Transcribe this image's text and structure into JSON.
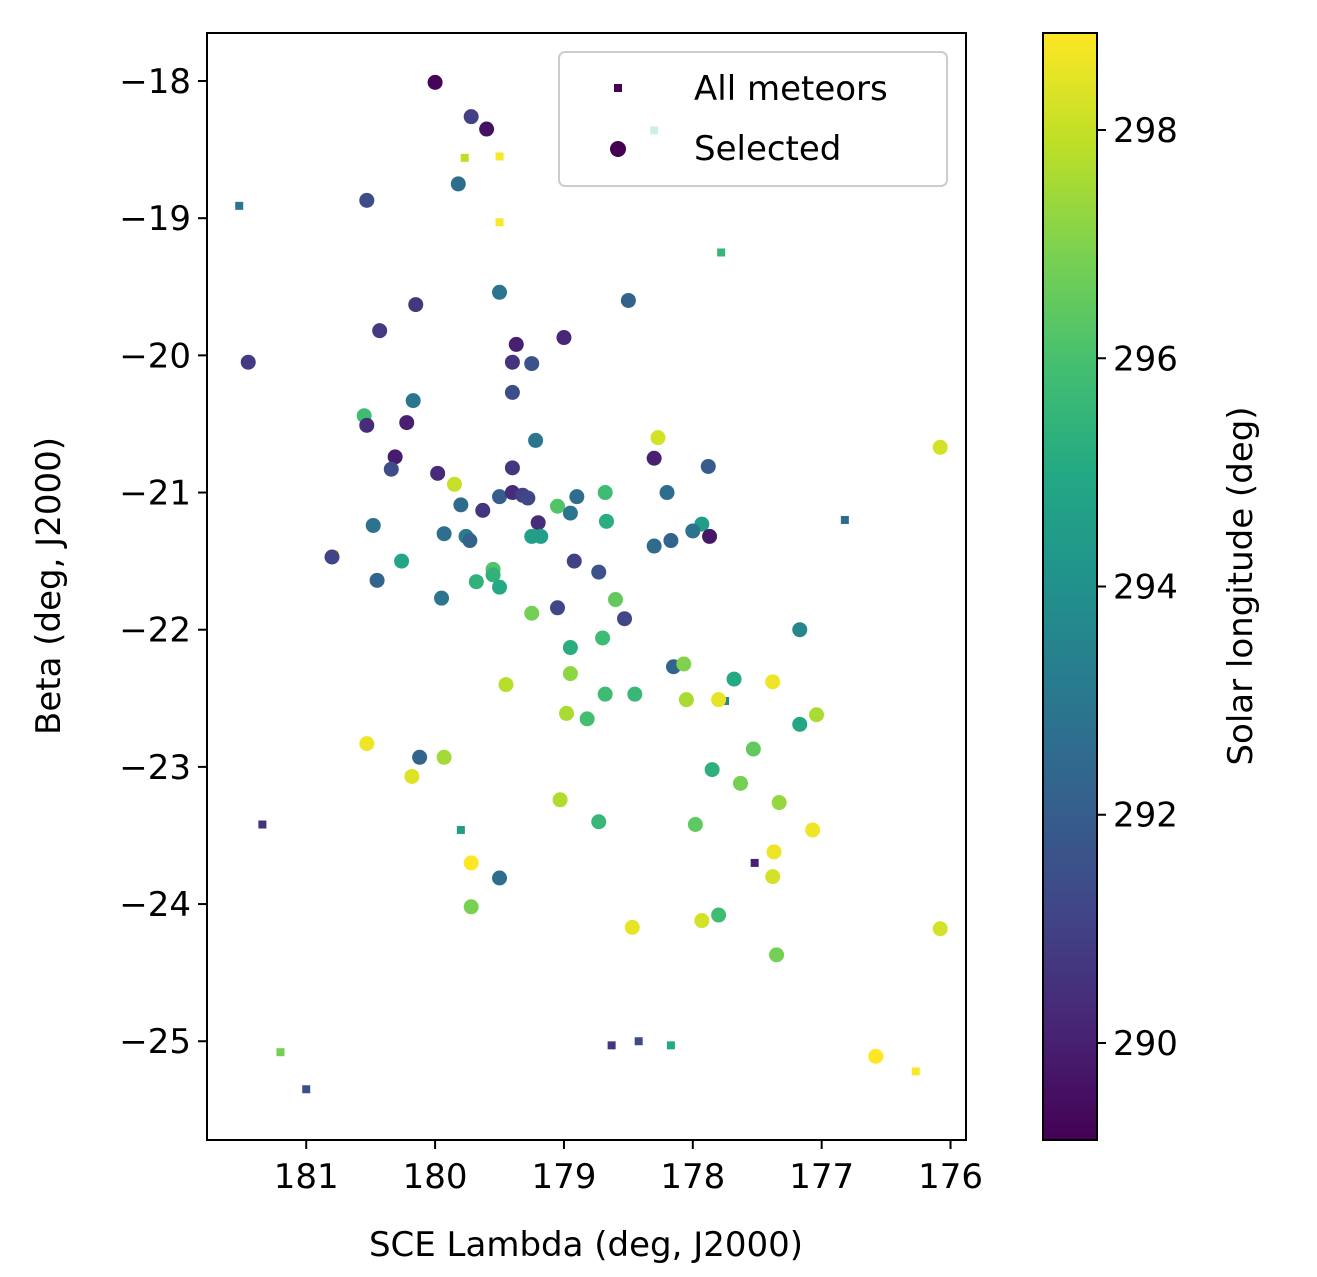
{
  "chart_data": {
    "type": "scatter",
    "xlabel": "SCE Lambda (deg, J2000)",
    "ylabel": "Beta (deg, J2000)",
    "xlim": [
      181.77,
      175.88
    ],
    "ylim": [
      -25.72,
      -17.65
    ],
    "x_inverted": true,
    "xticks": [
      181,
      180,
      179,
      178,
      177,
      176
    ],
    "xtick_labels": [
      "181",
      "180",
      "179",
      "178",
      "177",
      "176"
    ],
    "yticks": [
      -18,
      -19,
      -20,
      -21,
      -22,
      -23,
      -24,
      -25
    ],
    "ytick_labels": [
      "−18",
      "−19",
      "−20",
      "−21",
      "−22",
      "−23",
      "−24",
      "−25"
    ],
    "grid": false,
    "legend": {
      "placement": "top-right",
      "entries": [
        "All meteors",
        "Selected"
      ]
    },
    "colorbar": {
      "label": "Solar longitude (deg)",
      "colormap": "viridis",
      "range": [
        289.15,
        298.85
      ],
      "ticks": [
        290,
        292,
        294,
        296,
        298
      ],
      "tick_labels": [
        "290",
        "292",
        "294",
        "296",
        "298"
      ]
    },
    "series": [
      {
        "name": "All meteors",
        "marker": "square",
        "points": [
          [
            181.52,
            -18.91,
            292.9
          ],
          [
            181.34,
            -23.42,
            290.5
          ],
          [
            181.2,
            -25.08,
            296.8
          ],
          [
            181.0,
            -25.35,
            291.5
          ],
          [
            179.8,
            -23.46,
            294.5
          ],
          [
            179.77,
            -18.56,
            297.9
          ],
          [
            179.5,
            -18.55,
            298.8
          ],
          [
            179.5,
            -19.03,
            298.8
          ],
          [
            178.3,
            -18.36,
            294.8
          ],
          [
            177.78,
            -19.25,
            295.5
          ],
          [
            177.75,
            -22.52,
            293.6
          ],
          [
            176.82,
            -21.2,
            292.5
          ],
          [
            177.52,
            -23.7,
            290.0
          ],
          [
            178.63,
            -25.03,
            290.6
          ],
          [
            178.42,
            -25.0,
            291.3
          ],
          [
            178.17,
            -25.03,
            295.0
          ],
          [
            176.27,
            -25.22,
            298.8
          ],
          [
            180.78,
            -21.45,
            298.8
          ]
        ]
      },
      {
        "name": "Selected",
        "marker": "circle",
        "points": [
          [
            180.0,
            -18.01,
            289.3
          ],
          [
            179.72,
            -18.26,
            291.0
          ],
          [
            179.6,
            -18.35,
            289.6
          ],
          [
            179.82,
            -18.75,
            292.6
          ],
          [
            180.53,
            -18.87,
            291.4
          ],
          [
            179.5,
            -19.54,
            292.9
          ],
          [
            178.5,
            -19.6,
            292.2
          ],
          [
            180.15,
            -19.63,
            290.7
          ],
          [
            180.43,
            -19.82,
            290.8
          ],
          [
            179.37,
            -19.92,
            290.0
          ],
          [
            179.0,
            -19.87,
            290.2
          ],
          [
            181.45,
            -20.05,
            290.8
          ],
          [
            179.4,
            -20.05,
            290.6
          ],
          [
            179.25,
            -20.06,
            291.6
          ],
          [
            179.4,
            -20.27,
            291.4
          ],
          [
            180.55,
            -20.44,
            295.8
          ],
          [
            180.17,
            -20.33,
            292.9
          ],
          [
            180.53,
            -20.51,
            290.4
          ],
          [
            180.22,
            -20.49,
            290.0
          ],
          [
            179.22,
            -20.62,
            292.9
          ],
          [
            178.27,
            -20.6,
            298.2
          ],
          [
            180.31,
            -20.74,
            289.9
          ],
          [
            180.34,
            -20.83,
            291.4
          ],
          [
            178.3,
            -20.75,
            290.0
          ],
          [
            179.4,
            -20.82,
            290.7
          ],
          [
            177.88,
            -20.81,
            291.9
          ],
          [
            179.98,
            -20.86,
            290.3
          ],
          [
            179.85,
            -20.94,
            298.0
          ],
          [
            179.5,
            -21.03,
            292.0
          ],
          [
            179.4,
            -21.0,
            290.4
          ],
          [
            179.32,
            -21.02,
            291.0
          ],
          [
            179.28,
            -21.04,
            291.2
          ],
          [
            178.9,
            -21.03,
            292.6
          ],
          [
            178.68,
            -21.0,
            295.8
          ],
          [
            178.2,
            -21.0,
            292.6
          ],
          [
            179.8,
            -21.09,
            292.5
          ],
          [
            179.05,
            -21.1,
            296.2
          ],
          [
            178.95,
            -21.15,
            292.9
          ],
          [
            179.63,
            -21.13,
            290.6
          ],
          [
            179.2,
            -21.22,
            290.4
          ],
          [
            178.67,
            -21.21,
            295.2
          ],
          [
            177.93,
            -21.23,
            294.5
          ],
          [
            180.48,
            -21.24,
            292.8
          ],
          [
            179.93,
            -21.3,
            292.7
          ],
          [
            179.76,
            -21.32,
            293.2
          ],
          [
            179.73,
            -21.35,
            292.2
          ],
          [
            179.25,
            -21.32,
            294.6
          ],
          [
            179.18,
            -21.32,
            294.6
          ],
          [
            178.0,
            -21.28,
            292.8
          ],
          [
            177.87,
            -21.32,
            289.8
          ],
          [
            178.3,
            -21.39,
            292.5
          ],
          [
            178.17,
            -21.35,
            292.3
          ],
          [
            180.26,
            -21.5,
            294.9
          ],
          [
            180.8,
            -21.47,
            291.1
          ],
          [
            178.92,
            -21.5,
            291.0
          ],
          [
            178.73,
            -21.58,
            291.6
          ],
          [
            179.55,
            -21.56,
            296.2
          ],
          [
            179.55,
            -21.6,
            295.4
          ],
          [
            179.68,
            -21.65,
            295.4
          ],
          [
            180.45,
            -21.64,
            292.3
          ],
          [
            179.5,
            -21.69,
            295.0
          ],
          [
            179.95,
            -21.77,
            292.9
          ],
          [
            178.6,
            -21.78,
            296.5
          ],
          [
            178.53,
            -21.92,
            291.2
          ],
          [
            179.25,
            -21.88,
            296.8
          ],
          [
            179.05,
            -21.84,
            291.2
          ],
          [
            177.17,
            -22.0,
            293.6
          ],
          [
            178.7,
            -22.06,
            295.8
          ],
          [
            178.95,
            -22.13,
            295.2
          ],
          [
            178.15,
            -22.27,
            292.3
          ],
          [
            178.07,
            -22.25,
            297.0
          ],
          [
            178.95,
            -22.32,
            297.2
          ],
          [
            177.68,
            -22.36,
            295.0
          ],
          [
            179.45,
            -22.4,
            297.8
          ],
          [
            177.38,
            -22.38,
            298.6
          ],
          [
            178.68,
            -22.47,
            295.8
          ],
          [
            178.45,
            -22.47,
            295.6
          ],
          [
            178.05,
            -22.51,
            297.6
          ],
          [
            177.8,
            -22.51,
            298.5
          ],
          [
            178.98,
            -22.61,
            297.6
          ],
          [
            178.82,
            -22.65,
            295.9
          ],
          [
            177.04,
            -22.62,
            297.6
          ],
          [
            177.17,
            -22.69,
            294.9
          ],
          [
            177.53,
            -22.87,
            296.5
          ],
          [
            180.53,
            -22.83,
            298.6
          ],
          [
            180.12,
            -22.93,
            292.3
          ],
          [
            179.93,
            -22.93,
            297.5
          ],
          [
            177.85,
            -23.02,
            295.3
          ],
          [
            180.18,
            -23.07,
            298.4
          ],
          [
            177.63,
            -23.12,
            296.8
          ],
          [
            179.03,
            -23.24,
            297.7
          ],
          [
            177.33,
            -23.26,
            297.3
          ],
          [
            178.73,
            -23.4,
            295.6
          ],
          [
            177.98,
            -23.42,
            296.4
          ],
          [
            177.07,
            -23.46,
            298.6
          ],
          [
            177.37,
            -23.62,
            298.6
          ],
          [
            179.72,
            -23.7,
            298.9
          ],
          [
            179.5,
            -23.81,
            292.6
          ],
          [
            177.38,
            -23.8,
            298.2
          ],
          [
            179.72,
            -24.02,
            296.9
          ],
          [
            177.8,
            -24.08,
            295.8
          ],
          [
            177.93,
            -24.12,
            298.2
          ],
          [
            178.47,
            -24.17,
            298.5
          ],
          [
            176.08,
            -24.18,
            298.2
          ],
          [
            177.35,
            -24.37,
            296.8
          ],
          [
            176.08,
            -20.67,
            298.2
          ],
          [
            176.58,
            -25.11,
            298.9
          ]
        ]
      }
    ]
  }
}
